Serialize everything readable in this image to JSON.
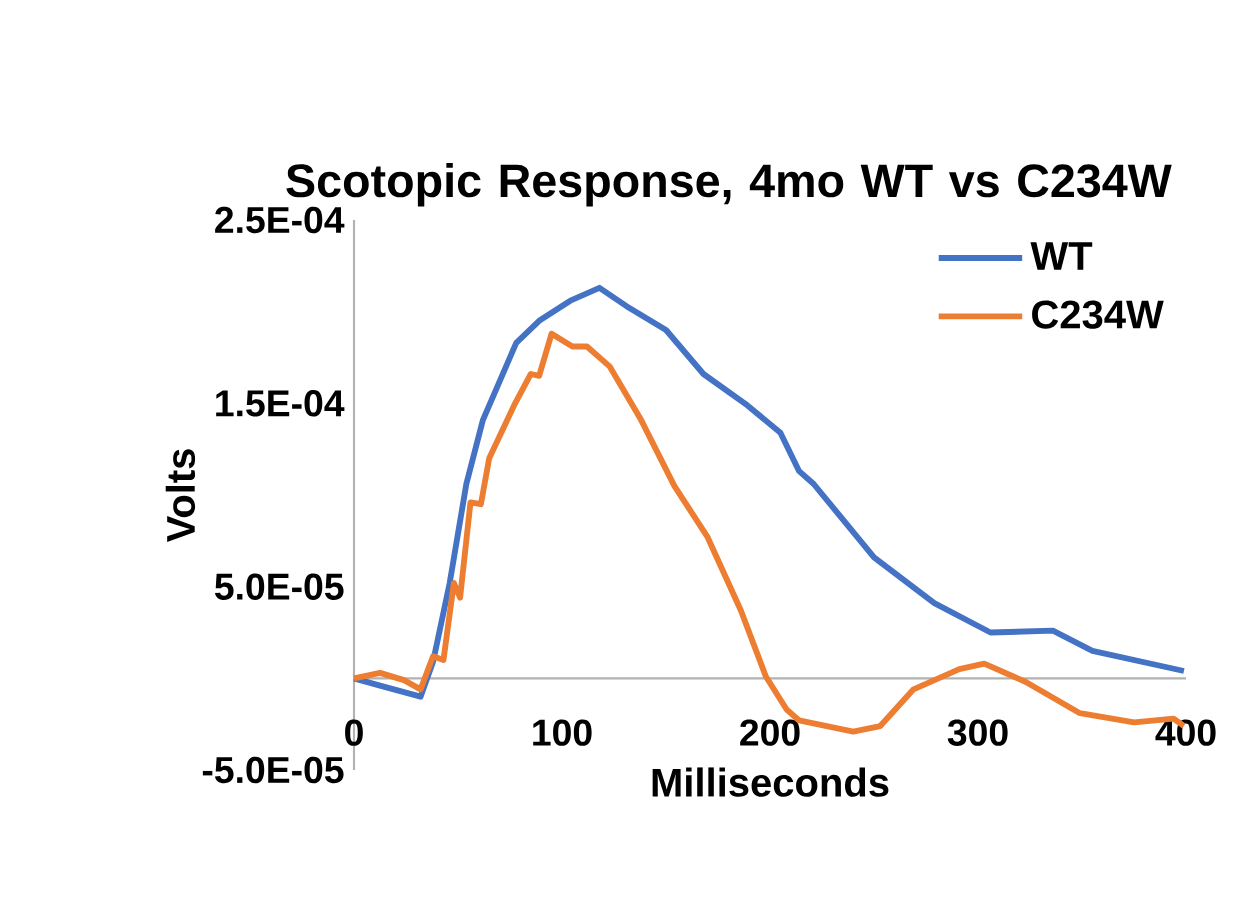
{
  "chart_data": {
    "type": "line",
    "title": "Scotopic Response, 4mo WT vs C234W",
    "xlabel": "Milliseconds",
    "ylabel": "Volts",
    "xlim": [
      0,
      400
    ],
    "xticks": [
      0,
      100,
      200,
      300,
      400
    ],
    "ylim": [
      -5e-05,
      0.00025
    ],
    "yticks": [
      {
        "value": -5e-05,
        "label": "-5.0E-05"
      },
      {
        "value": 5e-05,
        "label": "5.0E-05"
      },
      {
        "value": 0.00015,
        "label": "1.5E-04"
      },
      {
        "value": 0.00025,
        "label": "2.5E-04"
      }
    ],
    "legend": "top right",
    "grid": false,
    "series": [
      {
        "name": "WT",
        "color": "#4472c4",
        "x": [
          0,
          12.5,
          32,
          38,
          46,
          54,
          62,
          78,
          89,
          104,
          118,
          131,
          150,
          168,
          189,
          205,
          214,
          221,
          250,
          279,
          306,
          336,
          355,
          399
        ],
        "values": [
          0,
          -4e-06,
          -1e-05,
          9e-06,
          5.2e-05,
          0.000106,
          0.000141,
          0.000183,
          0.000195,
          0.000206,
          0.000213,
          0.000203,
          0.00019,
          0.000166,
          0.000149,
          0.000134,
          0.000113,
          0.000106,
          6.6e-05,
          4.1e-05,
          2.5e-05,
          2.6e-05,
          1.5e-05,
          4e-06
        ]
      },
      {
        "name": "C234W",
        "color": "#ed7d31",
        "x": [
          0,
          12.5,
          24,
          32,
          38,
          43,
          48,
          51,
          56,
          61,
          65,
          77,
          85,
          89,
          95,
          105,
          112,
          123,
          138,
          154,
          170,
          186,
          198,
          208,
          214,
          240,
          253,
          269,
          291,
          303,
          323,
          349,
          375,
          394,
          399
        ],
        "values": [
          0,
          3e-06,
          -1e-06,
          -6e-06,
          1.2e-05,
          1e-05,
          5.2e-05,
          4.4e-05,
          9.6e-05,
          9.5e-05,
          0.00012,
          0.000149,
          0.000166,
          0.000165,
          0.000188,
          0.000181,
          0.000181,
          0.00017,
          0.000141,
          0.000105,
          7.7e-05,
          3.7e-05,
          1e-06,
          -1.7e-05,
          -2.3e-05,
          -2.9e-05,
          -2.6e-05,
          -6e-06,
          5e-06,
          8e-06,
          -2e-06,
          -1.9e-05,
          -2.4e-05,
          -2.2e-05,
          -2.6e-05
        ]
      }
    ]
  }
}
